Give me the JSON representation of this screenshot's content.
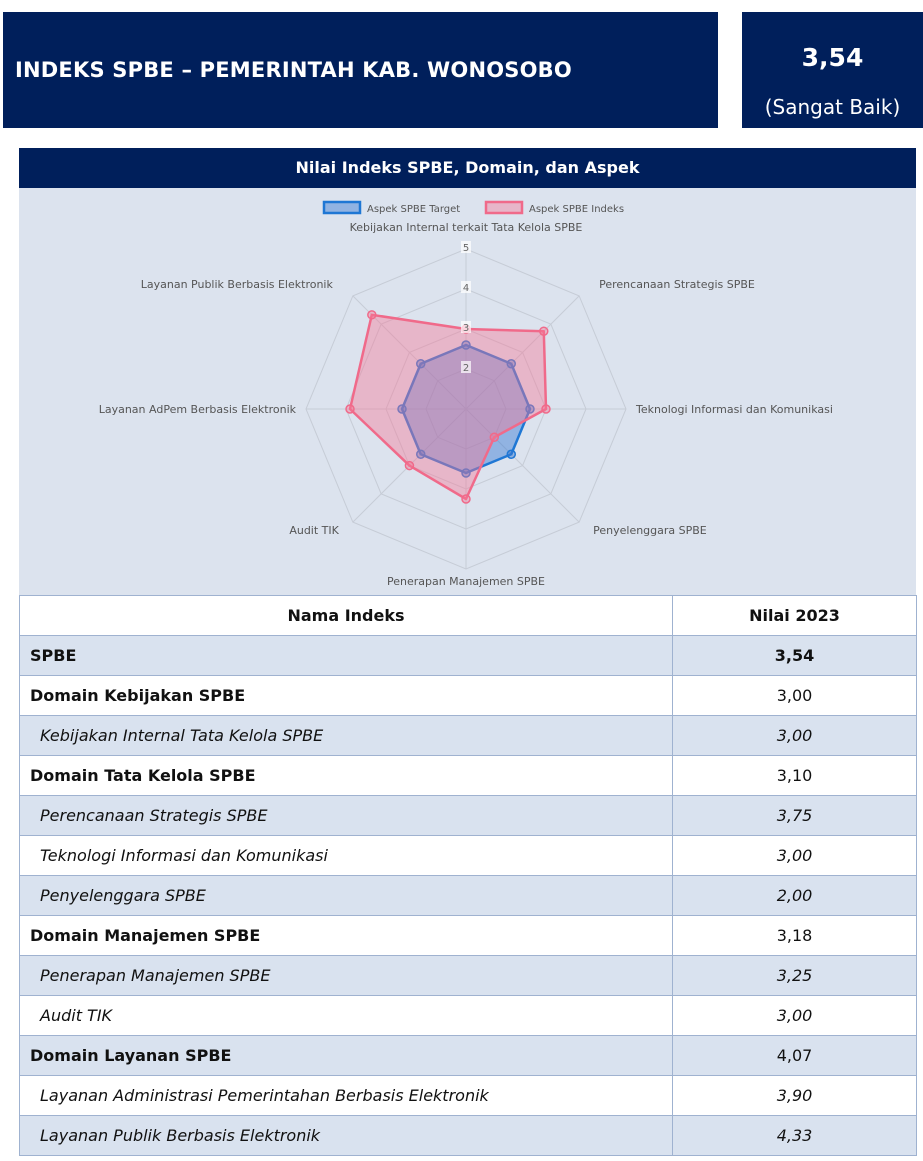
{
  "header": {
    "title": "INDEKS SPBE – PEMERINTAH KAB. WONOSOBO",
    "score": "3,54",
    "score_label": "(Sangat Baik)"
  },
  "panel": {
    "title": "Nilai Indeks SPBE, Domain, dan Aspek"
  },
  "chart_data": {
    "type": "radar",
    "title": "",
    "axes": [
      "Kebijakan Internal terkait Tata Kelola SPBE",
      "Perencanaan Strategis SPBE",
      "Teknologi Informasi dan Komunikasi",
      "Penyelenggara SPBE",
      "Penerapan Manajemen SPBE",
      "Audit TIK",
      "Layanan AdPem Berbasis Elektronik",
      "Layanan Publik Berbasis Elektronik"
    ],
    "rmin": 1,
    "rmax": 5,
    "ticks": [
      "2",
      "3",
      "4",
      "5"
    ],
    "legend_position": "top",
    "series": [
      {
        "name": "Aspek SPBE Target",
        "values": [
          2.6,
          2.6,
          2.6,
          2.6,
          2.6,
          2.6,
          2.6,
          2.6
        ],
        "stroke": "#1f77d4",
        "fill": "rgba(54,120,210,0.45)"
      },
      {
        "name": "Aspek SPBE Indeks",
        "values": [
          3.0,
          3.75,
          3.0,
          2.0,
          3.25,
          3.0,
          3.9,
          4.33
        ],
        "stroke": "#f06a8a",
        "fill": "rgba(245,120,150,0.42)"
      }
    ],
    "colors": {
      "grid": "#c6ccd6",
      "axis_label": "#555555",
      "background": "#dce3ee"
    }
  },
  "table": {
    "headers": [
      "Nama Indeks",
      "Nilai 2023"
    ],
    "rows": [
      {
        "name": "SPBE",
        "value": "3,54",
        "style": "bold shade"
      },
      {
        "name": "Domain Kebijakan SPBE",
        "value": "3,00",
        "style": "domain"
      },
      {
        "name": "Kebijakan Internal Tata Kelola SPBE",
        "value": "3,00",
        "style": "ital shade"
      },
      {
        "name": "Domain Tata Kelola SPBE",
        "value": "3,10",
        "style": "domain"
      },
      {
        "name": "Perencanaan Strategis SPBE",
        "value": "3,75",
        "style": "ital shade"
      },
      {
        "name": "Teknologi Informasi dan Komunikasi",
        "value": "3,00",
        "style": "ital"
      },
      {
        "name": "Penyelenggara SPBE",
        "value": "2,00",
        "style": "ital shade"
      },
      {
        "name": "Domain Manajemen SPBE",
        "value": "3,18",
        "style": "domain"
      },
      {
        "name": "Penerapan Manajemen SPBE",
        "value": "3,25",
        "style": "ital shade"
      },
      {
        "name": "Audit TIK",
        "value": "3,00",
        "style": "ital"
      },
      {
        "name": "Domain Layanan SPBE",
        "value": "4,07",
        "style": "domain shade"
      },
      {
        "name": "Layanan Administrasi Pemerintahan Berbasis Elektronik",
        "value": "3,90",
        "style": "ital"
      },
      {
        "name": "Layanan Publik Berbasis Elektronik",
        "value": "4,33",
        "style": "ital shade"
      }
    ]
  }
}
